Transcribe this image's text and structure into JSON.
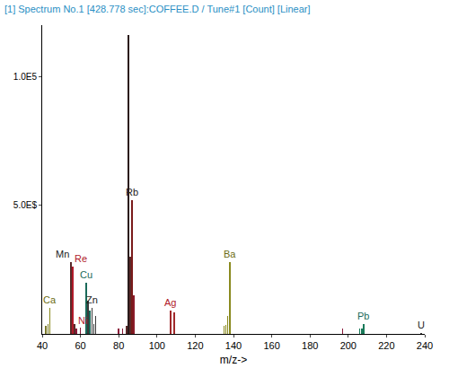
{
  "chart_data": {
    "type": "bar",
    "title": "[1] Spectrum No.1 [428.778 sec]:COFFEE.D / Tune#1 [Count] [Linear]",
    "x_label": "m/z->",
    "x": [
      42,
      43,
      44,
      55,
      56,
      57,
      58,
      60,
      63,
      64,
      65,
      66,
      67,
      68,
      80,
      82,
      84,
      85,
      86,
      87,
      88,
      107,
      109,
      135,
      136,
      137,
      138,
      197,
      206,
      207,
      208,
      238
    ],
    "values": [
      3000,
      4000,
      10000,
      28000,
      26000,
      4000,
      2000,
      2500,
      20000,
      13000,
      9000,
      10000,
      4000,
      7000,
      2000,
      2000,
      3000,
      116000,
      30000,
      52000,
      15000,
      9000,
      8500,
      3000,
      3500,
      7000,
      28000,
      2000,
      2000,
      2000,
      4000,
      400
    ],
    "colors": [
      "#7a7a2a",
      "#7a7a2a",
      "#8a8a1e",
      "#5a2a2a",
      "#b01a2a",
      "#5a2a2a",
      "#8a1a3a",
      "#8a1a3a",
      "#1a6a5a",
      "#3a3a3a",
      "#1a6a5a",
      "#3a3a3a",
      "#3a3a3a",
      "#3a3a3a",
      "#8a1a3a",
      "#8a1a3a",
      "#5a2a2a",
      "#2a1a1a",
      "#5a2a2a",
      "#7a1a1a",
      "#8a1a2a",
      "#a0282a",
      "#a0282a",
      "#8a8a1e",
      "#8a8a1e",
      "#8a8a1e",
      "#8a8a1e",
      "#8a1a3a",
      "#1a7a5a",
      "#1a7a5a",
      "#1a7a5a",
      "#3a3a3a"
    ],
    "xlim": [
      40,
      240
    ],
    "xticks": [
      40,
      60,
      80,
      100,
      120,
      140,
      160,
      180,
      200,
      220,
      240
    ],
    "ylim": [
      0,
      120000
    ],
    "yticks": [
      {
        "value": 50000,
        "label": "5.0E$"
      },
      {
        "value": 100000,
        "label": "1.0E5"
      }
    ],
    "grid": false,
    "annotations": [
      {
        "text": "Ca",
        "x": 44,
        "color": "#6b6b10"
      },
      {
        "text": "Mn",
        "x": 55,
        "color": "#222222"
      },
      {
        "text": "Re",
        "x": 56,
        "color": "#b01a2a"
      },
      {
        "text": "Ni",
        "x": 58,
        "color": "#b01a2a"
      },
      {
        "text": "Cu",
        "x": 63,
        "color": "#1a6a5a"
      },
      {
        "text": "Zn",
        "x": 66,
        "color": "#222222"
      },
      {
        "text": "Rb",
        "x": 87,
        "color": "#222222"
      },
      {
        "text": "Ag",
        "x": 107,
        "color": "#b01a2a"
      },
      {
        "text": "Ba",
        "x": 138,
        "color": "#6b6b10"
      },
      {
        "text": "Pb",
        "x": 208,
        "color": "#1a6a5a"
      },
      {
        "text": "U",
        "x": 238,
        "color": "#222222"
      }
    ]
  }
}
